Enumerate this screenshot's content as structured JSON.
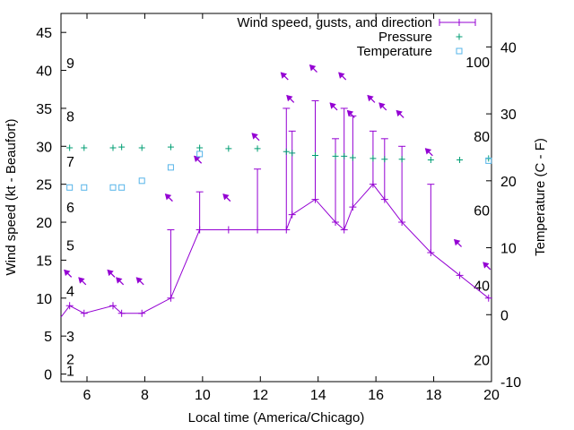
{
  "chart_data": {
    "type": "line",
    "xlabel": "Local time (America/Chicago)",
    "ylabel": "Wind speed (kt - Beaufort)",
    "y2label": "Temperature (C - F)",
    "xlim": [
      5.1,
      20
    ],
    "ylim": [
      -1,
      47.5
    ],
    "y2lim": [
      -10,
      45
    ],
    "x_ticks": [
      6,
      8,
      10,
      12,
      14,
      16,
      18,
      20
    ],
    "y_ticks": [
      0,
      5,
      10,
      15,
      20,
      25,
      30,
      35,
      40,
      45
    ],
    "y2_ticks": [
      -10,
      0,
      10,
      20,
      30,
      40
    ],
    "beaufort_labels": [
      {
        "label": "1",
        "y": 0.5
      },
      {
        "label": "2",
        "y": 2
      },
      {
        "label": "3",
        "y": 5
      },
      {
        "label": "4",
        "y": 11
      },
      {
        "label": "5",
        "y": 17
      },
      {
        "label": "6",
        "y": 22
      },
      {
        "label": "7",
        "y": 28
      },
      {
        "label": "8",
        "y": 34
      },
      {
        "label": "9",
        "y": 41
      }
    ],
    "fahrenheit_labels": [
      {
        "label": "20",
        "c": -6.7
      },
      {
        "label": "40",
        "c": 4.4
      },
      {
        "label": "60",
        "c": 15.6
      },
      {
        "label": "80",
        "c": 26.7
      },
      {
        "label": "100",
        "c": 37.8
      }
    ],
    "legend": {
      "position": "top-right"
    },
    "series": [
      {
        "name": "Wind speed, gusts, and direction",
        "color": "#9400d3",
        "x": [
          5.1,
          5.4,
          5.9,
          6.9,
          7.2,
          7.9,
          8.9,
          9.9,
          10.9,
          11.9,
          12.9,
          13.1,
          13.9,
          14.6,
          14.9,
          15.2,
          15.9,
          16.3,
          16.9,
          17.9,
          18.9,
          19.9
        ],
        "values": [
          7.5,
          9,
          8,
          9,
          8,
          8,
          10,
          19,
          19,
          19,
          19,
          21,
          23,
          20,
          19,
          22,
          25,
          23,
          20,
          16,
          13,
          10
        ],
        "gusts": [
          null,
          null,
          null,
          null,
          null,
          null,
          19,
          24,
          null,
          27,
          35,
          32,
          36,
          31,
          35,
          34,
          32,
          31,
          30,
          25,
          null,
          null
        ]
      },
      {
        "name": "Pressure",
        "color": "#009e73",
        "x": [
          5.4,
          5.9,
          6.9,
          7.2,
          7.9,
          8.9,
          9.9,
          10.9,
          11.9,
          12.9,
          13.1,
          13.9,
          14.6,
          14.9,
          15.2,
          15.9,
          16.3,
          16.9,
          17.9,
          18.9,
          19.9
        ],
        "values": [
          29.8,
          29.8,
          29.8,
          29.9,
          29.8,
          29.9,
          29.8,
          29.7,
          29.7,
          29.3,
          29.1,
          28.8,
          28.7,
          28.7,
          28.5,
          28.4,
          28.3,
          28.3,
          28.2,
          28.2,
          28.4
        ]
      },
      {
        "name": "Temperature",
        "color": "#56b4e9",
        "x": [
          5.4,
          5.9,
          6.9,
          7.2,
          7.9,
          8.9,
          9.9,
          19.9
        ],
        "values": [
          19,
          19,
          19,
          19,
          20,
          22,
          24,
          23
        ]
      }
    ],
    "wind_direction_arrows": {
      "x": [
        5.4,
        5.9,
        6.9,
        7.2,
        7.9,
        8.9,
        9.9,
        10.9,
        11.9,
        12.9,
        13.1,
        13.9,
        14.6,
        14.9,
        15.2,
        15.9,
        16.3,
        16.9,
        17.9,
        18.9,
        19.9
      ],
      "y": [
        13,
        12,
        13,
        12,
        12,
        23,
        28,
        23,
        31,
        39,
        36,
        40,
        35,
        39,
        34,
        36,
        35,
        34,
        29,
        17,
        14
      ]
    }
  }
}
